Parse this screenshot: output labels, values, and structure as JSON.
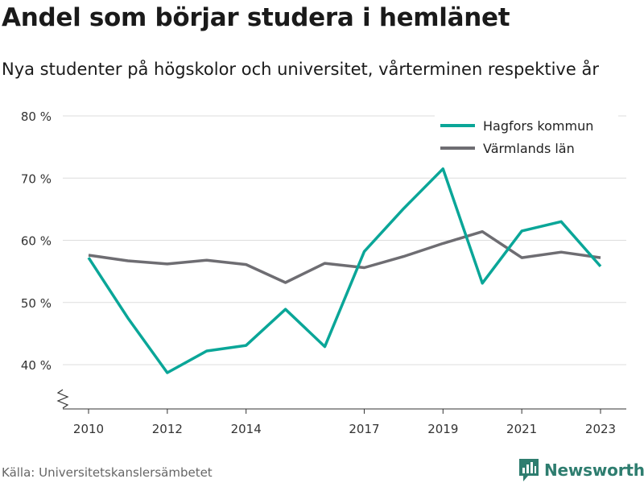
{
  "header": {
    "title": "Andel som börjar studera i hemlänet",
    "subtitle": "Nya studenter på högskolor och universitet, vårterminen respektive år"
  },
  "footer": {
    "source": "Källa: Universitetskanslersämbetet",
    "brand": "Newsworthy",
    "brand_color": "#2e7d6f"
  },
  "chart_data": {
    "type": "line",
    "title": "Andel som börjar studera i hemlänet",
    "subtitle": "Nya studenter på högskolor och universitet, vårterminen respektive år",
    "xlabel": "",
    "ylabel": "",
    "x": [
      2010,
      2011,
      2012,
      2013,
      2014,
      2015,
      2016,
      2017,
      2018,
      2019,
      2020,
      2021,
      2022,
      2023
    ],
    "x_ticks": [
      2010,
      2012,
      2014,
      2017,
      2019,
      2021,
      2023
    ],
    "y_ticks": [
      40,
      50,
      60,
      70,
      80
    ],
    "y_tick_suffix": " %",
    "ylim": [
      33,
      80
    ],
    "grid": true,
    "legend_position": "top-right",
    "series": [
      {
        "name": "Hagfors kommun",
        "color": "#0aa698",
        "values": [
          57.2,
          47.5,
          38.7,
          42.2,
          43.1,
          48.9,
          42.9,
          58.2,
          65.1,
          71.5,
          53.1,
          61.5,
          63.0,
          55.8
        ]
      },
      {
        "name": "Värmlands län",
        "color": "#6e6d72",
        "values": [
          57.6,
          56.7,
          56.2,
          56.8,
          56.1,
          53.2,
          56.3,
          55.6,
          57.4,
          59.5,
          61.4,
          57.2,
          58.1,
          57.2
        ]
      }
    ]
  }
}
